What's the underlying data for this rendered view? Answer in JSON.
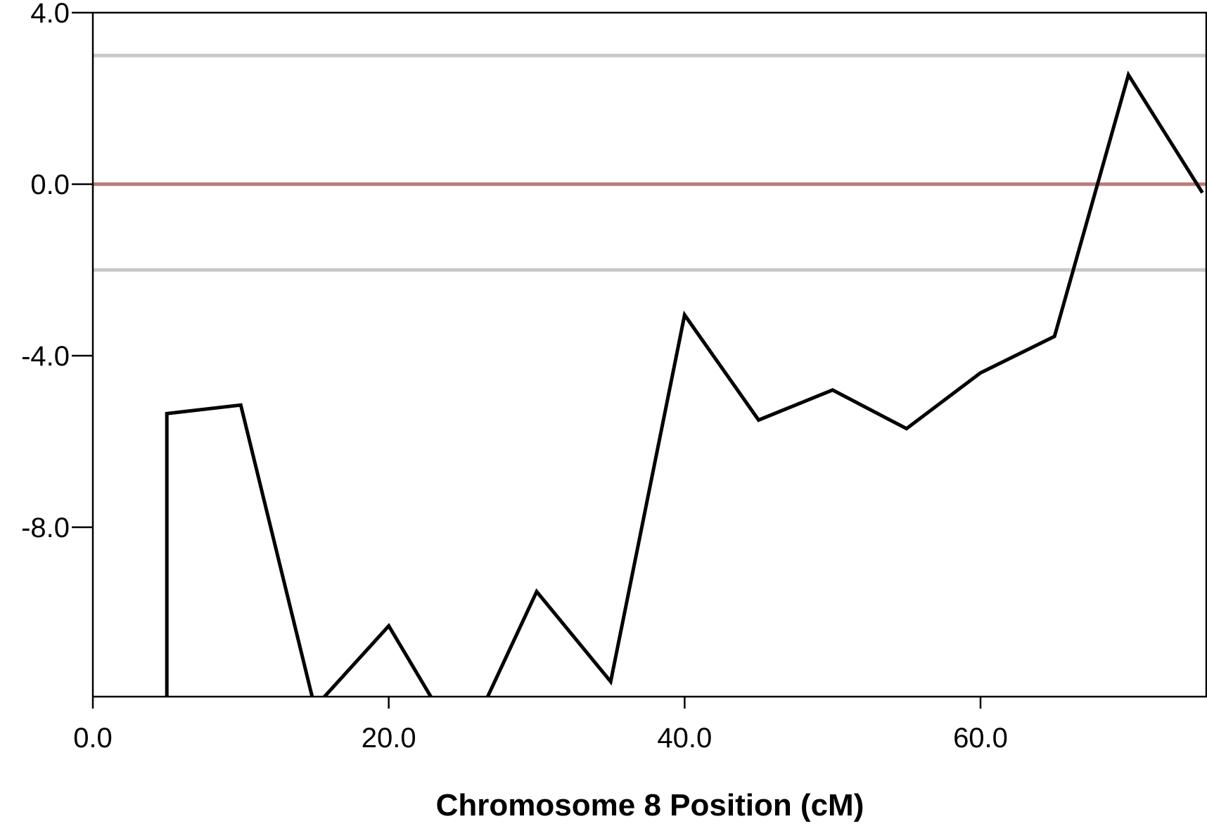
{
  "chart_data": {
    "type": "line",
    "title": "",
    "xlabel": "Chromosome 8 Position (cM)",
    "ylabel": "",
    "xlim": [
      0,
      75
    ],
    "ylim": [
      -12,
      4
    ],
    "x_ticks": [
      0,
      20,
      40,
      60
    ],
    "x_tick_labels": [
      "0.0",
      "20.0",
      "40.0",
      "60.0"
    ],
    "y_ticks": [
      4,
      0,
      -4,
      -8
    ],
    "y_tick_labels": [
      "4.0",
      "0.0",
      "-4.0",
      "-8.0"
    ],
    "grid": false,
    "legend": "none",
    "reference_lines": [
      {
        "y": 3.0,
        "color": "#c8c8c8"
      },
      {
        "y": 0.0,
        "color": "#b87a7a"
      },
      {
        "y": -2.0,
        "color": "#c8c8c8"
      }
    ],
    "series": [
      {
        "color": "#000000",
        "x": [
          5,
          5,
          10,
          15,
          20,
          25,
          30,
          35,
          40,
          45,
          50,
          55,
          60,
          65,
          70,
          75
        ],
        "y": [
          -12.5,
          -5.35,
          -5.15,
          -12.2,
          -10.3,
          -13.2,
          -9.5,
          -11.6,
          -3.05,
          -5.5,
          -4.8,
          -5.7,
          -4.4,
          -3.55,
          2.55,
          -0.2
        ]
      }
    ]
  }
}
